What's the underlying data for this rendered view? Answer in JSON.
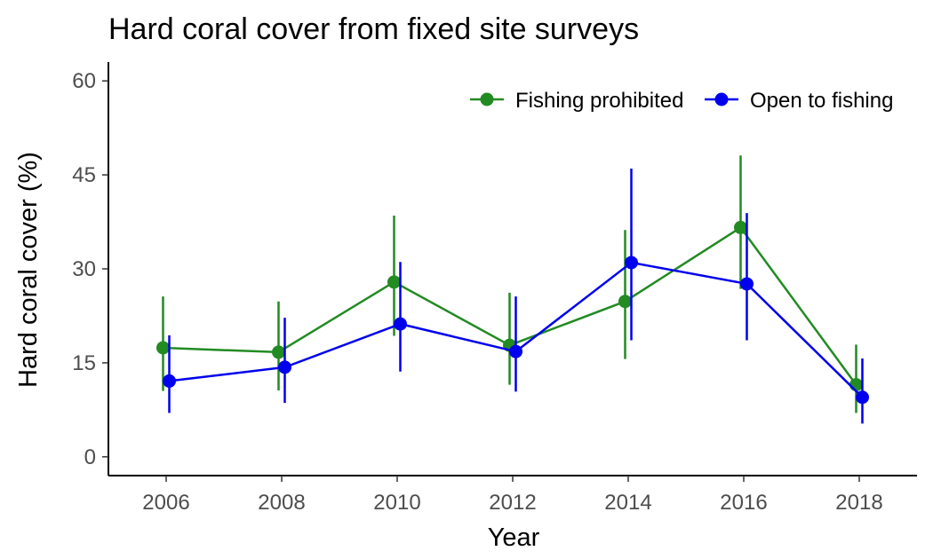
{
  "chart_data": {
    "type": "line",
    "title": "Hard coral cover from fixed site surveys",
    "xlabel": "Year",
    "ylabel": "Hard coral cover (%)",
    "xlim": [
      2005,
      2019
    ],
    "ylim": [
      -3,
      63
    ],
    "x_ticks": [
      2006,
      2008,
      2010,
      2012,
      2014,
      2016,
      2018
    ],
    "y_ticks": [
      0,
      15,
      30,
      45,
      60
    ],
    "grid": false,
    "legend_position": "top-right",
    "series": [
      {
        "name": "Fishing prohibited",
        "color": "#228B22",
        "x": [
          2006,
          2008,
          2010,
          2012,
          2014,
          2016,
          2018
        ],
        "values": [
          17.4,
          16.7,
          27.9,
          17.8,
          24.8,
          36.6,
          11.5
        ],
        "lower": [
          10.5,
          10.6,
          19.3,
          11.5,
          15.6,
          26.8,
          7.0
        ],
        "upper": [
          25.6,
          24.8,
          38.5,
          26.2,
          36.2,
          48.1,
          17.9
        ]
      },
      {
        "name": "Open to fishing",
        "color": "#0000EE",
        "x": [
          2006,
          2008,
          2010,
          2012,
          2014,
          2016,
          2018
        ],
        "values": [
          12.1,
          14.3,
          21.2,
          16.8,
          31.0,
          27.6,
          9.5
        ],
        "lower": [
          7.0,
          8.6,
          13.6,
          10.4,
          18.6,
          18.6,
          5.3
        ],
        "upper": [
          19.4,
          22.2,
          31.1,
          25.6,
          46.0,
          38.9,
          15.7
        ]
      }
    ]
  }
}
